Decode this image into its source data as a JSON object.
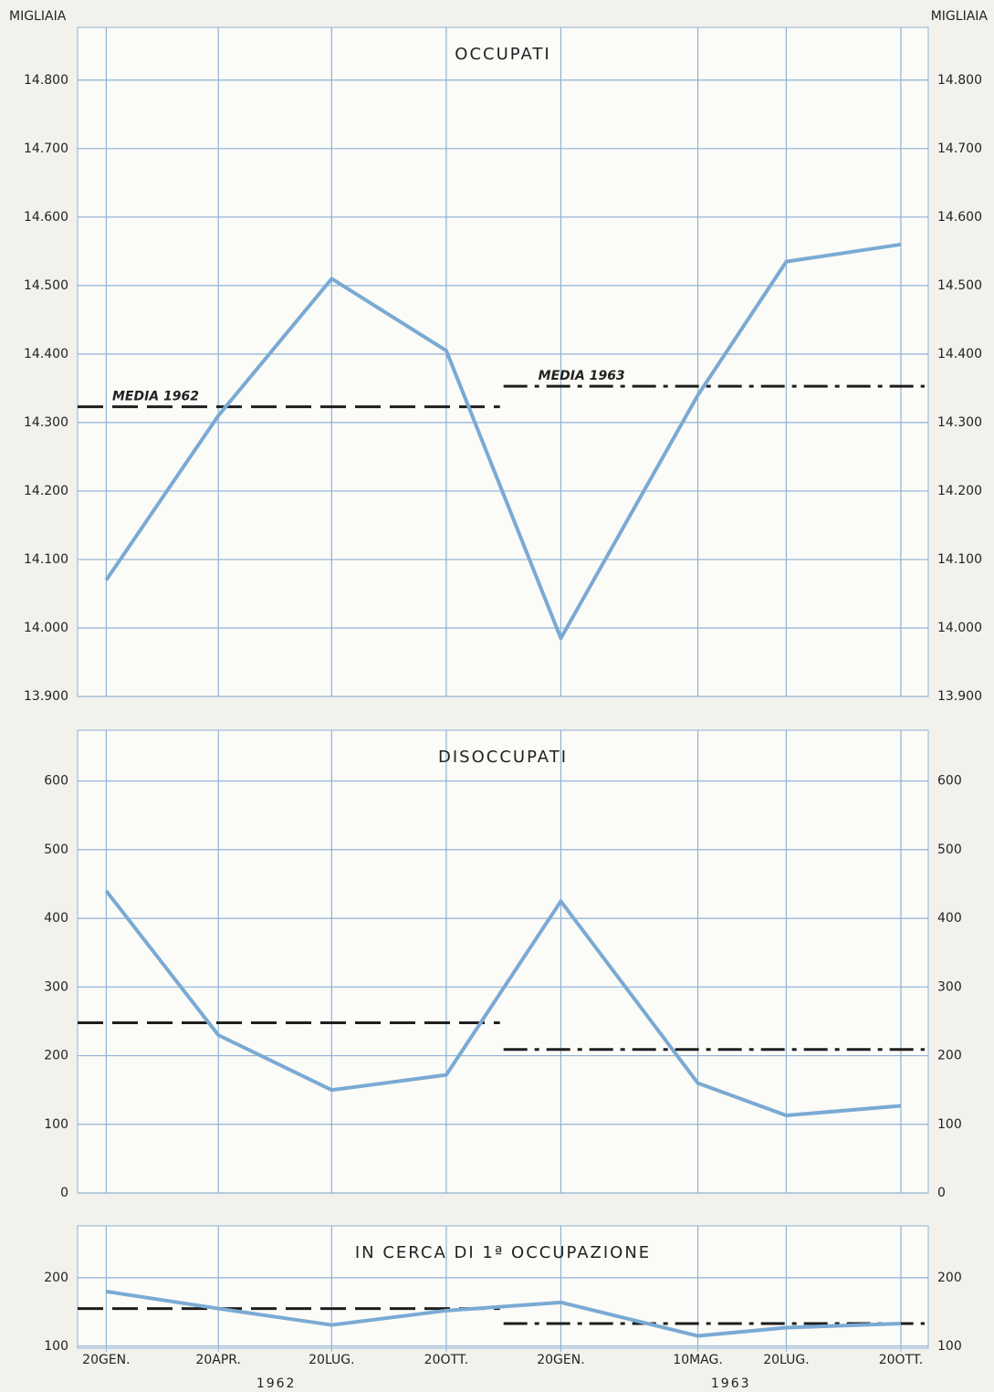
{
  "chart_data": [
    {
      "type": "line",
      "title": "OCCUPATI",
      "y_axis_label": "MIGLIAIA",
      "color": "#7aaad3",
      "x": [
        "1962-01-20",
        "1962-04-20",
        "1962-07-20",
        "1962-10-20",
        "1963-01-20",
        "1963-05-10",
        "1963-07-20",
        "1963-10-20"
      ],
      "values": [
        14070,
        14310,
        14510,
        14405,
        13985,
        14340,
        14535,
        14560
      ],
      "xlim": [
        "1961-12-28",
        "1963-11-11"
      ],
      "ylim": [
        13900,
        14877
      ],
      "yticks": [
        {
          "value": 13900,
          "label": "13.900"
        },
        {
          "value": 14000,
          "label": "14.000"
        },
        {
          "value": 14100,
          "label": "14.100"
        },
        {
          "value": 14200,
          "label": "14.200"
        },
        {
          "value": 14300,
          "label": "14.300"
        },
        {
          "value": 14400,
          "label": "14.400"
        },
        {
          "value": 14500,
          "label": "14.500"
        },
        {
          "value": 14600,
          "label": "14.600"
        },
        {
          "value": 14700,
          "label": "14.700"
        },
        {
          "value": 14800,
          "label": "14.800"
        }
      ],
      "grid": true,
      "reference_lines": [
        {
          "label": "MEDIA 1962",
          "value": 14323,
          "style": "dashed"
        },
        {
          "label": "MEDIA 1963",
          "value": 14353,
          "style": "dashdot"
        }
      ]
    },
    {
      "type": "line",
      "title": "DISOCCUPATI",
      "color": "#7aaad3",
      "x": [
        "1962-01-20",
        "1962-04-20",
        "1962-07-20",
        "1962-10-20",
        "1963-01-20",
        "1963-05-10",
        "1963-07-20",
        "1963-10-20"
      ],
      "values": [
        440,
        230,
        150,
        172,
        425,
        160,
        113,
        127
      ],
      "xlim": [
        "1961-12-28",
        "1963-11-11"
      ],
      "ylim": [
        0,
        674
      ],
      "yticks": [
        0,
        100,
        200,
        300,
        400,
        500,
        600
      ],
      "grid": true,
      "reference_lines": [
        {
          "value": 248,
          "style": "dashed"
        },
        {
          "value": 209,
          "style": "dashdot"
        }
      ]
    },
    {
      "type": "line",
      "title": "IN CERCA DI 1ª OCCUPAZIONE",
      "color": "#7aaad3",
      "x": [
        "1962-01-20",
        "1962-04-20",
        "1962-07-20",
        "1962-10-20",
        "1963-01-20",
        "1963-05-10",
        "1963-07-20",
        "1963-10-20"
      ],
      "values": [
        180,
        155,
        131,
        152,
        164,
        115,
        127,
        133
      ],
      "xlim": [
        "1961-12-28",
        "1963-11-11"
      ],
      "ylim": [
        97,
        276
      ],
      "yticks": [
        100,
        200
      ],
      "grid": true,
      "xticks": [
        {
          "value": "1962-01-20",
          "label": "20GEN."
        },
        {
          "value": "1962-04-20",
          "label": "20APR."
        },
        {
          "value": "1962-07-20",
          "label": "20LUG."
        },
        {
          "value": "1962-10-20",
          "label": "20OTT."
        },
        {
          "value": "1963-01-20",
          "label": "20GEN."
        },
        {
          "value": "1963-05-10",
          "label": "10MAG."
        },
        {
          "value": "1963-07-20",
          "label": "20LUG."
        },
        {
          "value": "1963-10-20",
          "label": "20OTT."
        }
      ],
      "x_group_labels": [
        "1962",
        "1963"
      ],
      "reference_lines": [
        {
          "value": 155,
          "style": "dashed"
        },
        {
          "value": 133,
          "style": "dashdot"
        }
      ]
    }
  ]
}
